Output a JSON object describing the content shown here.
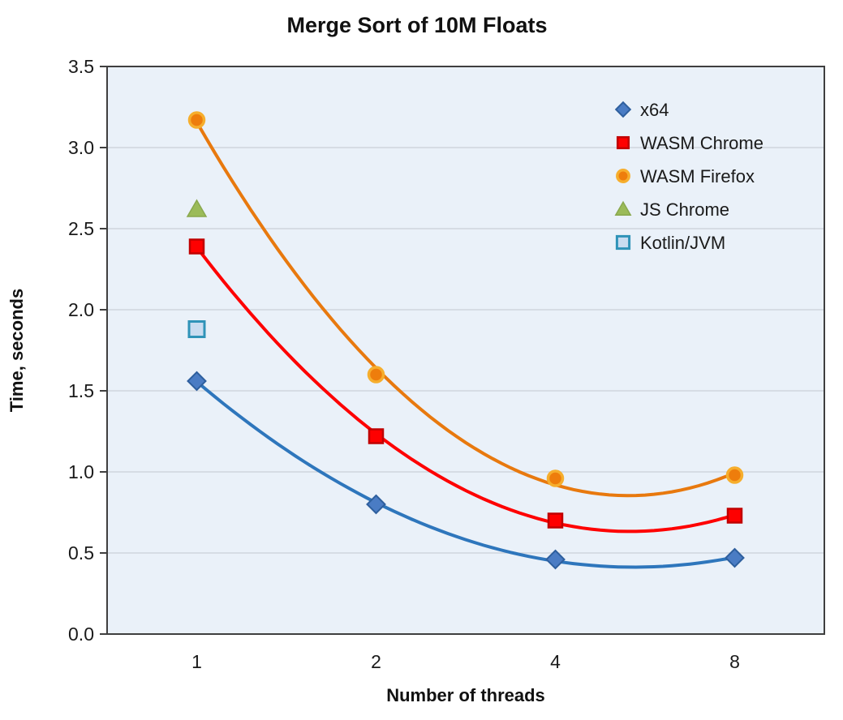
{
  "title": "Merge Sort of 10M Floats",
  "axes": {
    "x_label": "Number of threads",
    "y_label": "Time, seconds"
  },
  "chart_data": {
    "type": "scatter",
    "subtype": "points-with-quadratic-trendlines",
    "title": "Merge Sort of 10M Floats",
    "xlabel": "Number of threads",
    "ylabel": "Time, seconds",
    "x_axis": {
      "kind": "category",
      "categories": [
        "1",
        "2",
        "4",
        "8"
      ]
    },
    "y_axis": {
      "min": 0.0,
      "max": 3.5,
      "step": 0.5,
      "tick_labels": [
        "0.0",
        "0.5",
        "1.0",
        "1.5",
        "2.0",
        "2.5",
        "3.0",
        "3.5"
      ]
    },
    "grid": true,
    "legend_position": "top-right",
    "series": [
      {
        "name": "x64",
        "marker": "diamond",
        "trendline": "poly2",
        "line_color": "#2E76BC",
        "marker_fill": "#4A7CC4",
        "marker_stroke": "#2E5F9E",
        "values": [
          1.56,
          0.8,
          0.46,
          0.47
        ]
      },
      {
        "name": "WASM Chrome",
        "marker": "square",
        "trendline": "poly2",
        "line_color": "#FE0000",
        "marker_fill": "#FE0000",
        "marker_stroke": "#C00000",
        "values": [
          2.39,
          1.22,
          0.7,
          0.73
        ]
      },
      {
        "name": "WASM Firefox",
        "marker": "circle",
        "trendline": "poly2",
        "line_color": "#E8790E",
        "marker_fill": "#EE7D0C",
        "marker_stroke": "#F6AE2D",
        "values": [
          3.17,
          1.6,
          0.96,
          0.98
        ]
      },
      {
        "name": "JS Chrome",
        "marker": "triangle",
        "trendline": null,
        "line_color": "#9BBB59",
        "marker_fill": "#9BBB59",
        "marker_stroke": "#89A84E",
        "values": [
          2.62,
          null,
          null,
          null
        ]
      },
      {
        "name": "Kotlin/JVM",
        "marker": "square-open",
        "trendline": null,
        "line_color": "#2F93B8",
        "marker_fill": "#C9DCF0",
        "marker_stroke": "#2F93B8",
        "values": [
          1.88,
          null,
          null,
          null
        ]
      }
    ],
    "colors": {
      "plot_background": "#EAF1F9",
      "gridline": "#C9D0D8",
      "plot_border": "#3F3F3F",
      "text": "#1A1A1A"
    }
  }
}
